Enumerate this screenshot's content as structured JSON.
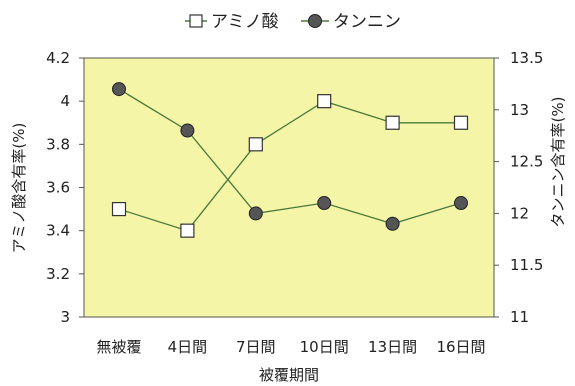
{
  "chart_data": {
    "type": "line",
    "title": "",
    "xlabel": "被覆期間",
    "ylabel_left": "アミノ酸含有率(%)",
    "ylabel_right": "タンニン含有率(%)",
    "categories": [
      "無被覆",
      "4日間",
      "7日間",
      "10日間",
      "13日間",
      "16日間"
    ],
    "y_left": {
      "min": 3,
      "max": 4.2,
      "ticks": [
        "3",
        "3.2",
        "3.4",
        "3.6",
        "3.8",
        "4",
        "4.2"
      ]
    },
    "y_right": {
      "min": 11,
      "max": 13.5,
      "ticks": [
        "11",
        "11.5",
        "12",
        "12.5",
        "13",
        "13.5"
      ]
    },
    "series": [
      {
        "name": "アミノ酸",
        "axis": "left",
        "marker": "open-square",
        "values": [
          3.5,
          3.4,
          3.8,
          4.0,
          3.9,
          3.9
        ]
      },
      {
        "name": "タンニン",
        "axis": "right",
        "marker": "filled-circle",
        "values": [
          13.2,
          12.8,
          12.0,
          12.1,
          11.9,
          12.1
        ]
      }
    ],
    "legend_position": "top-center",
    "grid": false,
    "colors": {
      "plot_background": "#f5f5a8",
      "line": "#4a7a3a",
      "marker_fill_circle": "#555555",
      "marker_fill_square": "#ffffff"
    }
  }
}
